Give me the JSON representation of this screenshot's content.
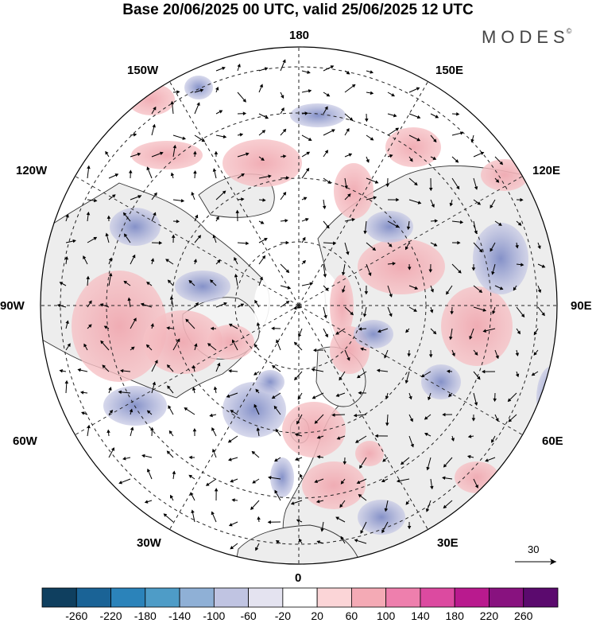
{
  "title": "Base 20/06/2025 00 UTC, valid 25/06/2025 12 UTC",
  "brand": {
    "name": "MODES",
    "mark": "©"
  },
  "map": {
    "projection": "north polar stereographic",
    "longitude_labels": {
      "top": "180",
      "bottom": "0",
      "left": "90W",
      "right": "90E",
      "upper_left_1": "150W",
      "upper_left_2": "120W",
      "upper_right_1": "150E",
      "upper_right_2": "120E",
      "lower_left_1": "60W",
      "lower_left_2": "30W",
      "lower_right_1": "60E",
      "lower_right_2": "30E"
    },
    "wind_reference_value": "30",
    "positive_color": "#f4b3b8",
    "negative_color": "#a7acd6",
    "land_color": "#eeeeee"
  },
  "colorbar": {
    "colors": [
      "#0f3f5f",
      "#1a6396",
      "#2b83ba",
      "#4e9cc7",
      "#8fb0d6",
      "#c0c4e2",
      "#e4e3f0",
      "#ffffff",
      "#fbd5d7",
      "#f4aab5",
      "#ee7fad",
      "#dc4aa0",
      "#b91a8e",
      "#88127f",
      "#5b0a6e"
    ],
    "labels": [
      "-260",
      "-220",
      "-180",
      "-140",
      "-100",
      "-60",
      "-20",
      "20",
      "60",
      "100",
      "140",
      "180",
      "220",
      "260"
    ]
  }
}
